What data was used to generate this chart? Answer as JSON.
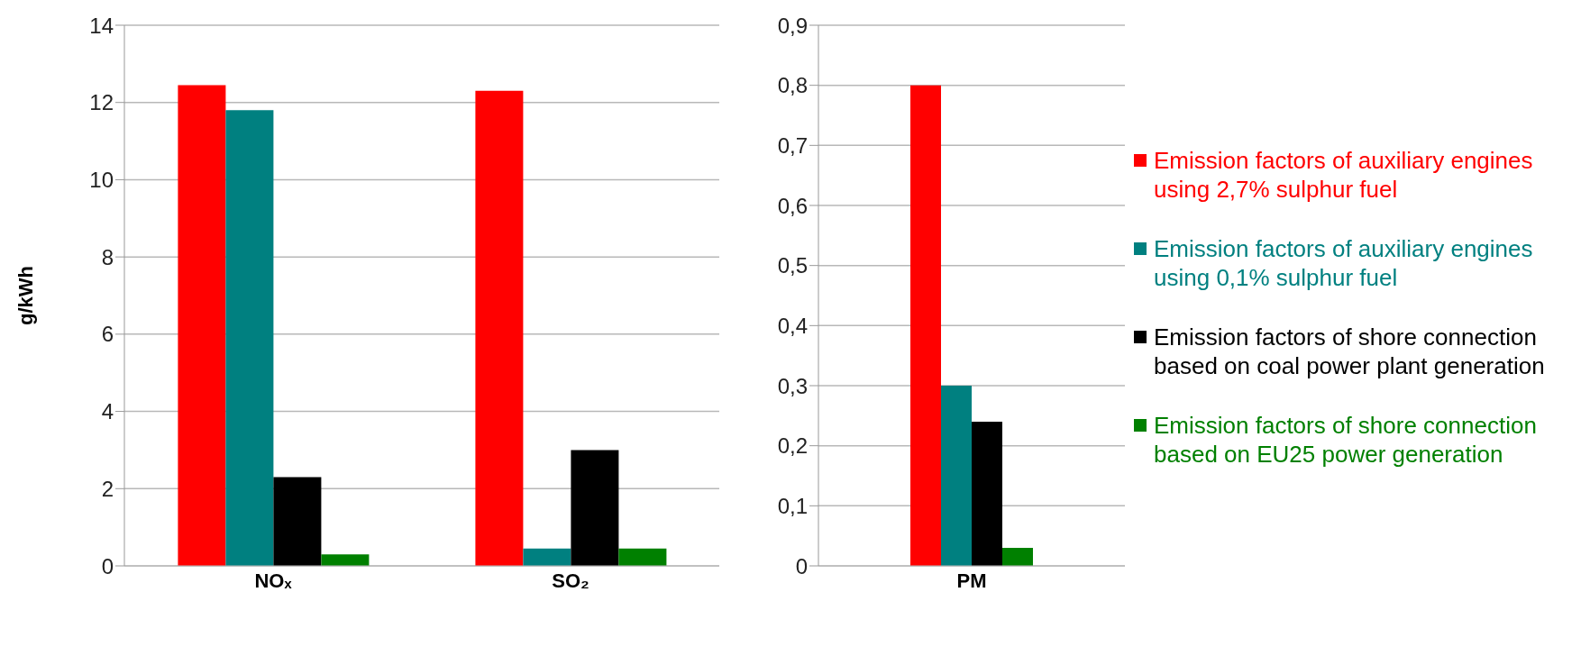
{
  "chart_data": [
    {
      "type": "bar",
      "ylabel": "g/kWh",
      "categories": [
        "NOₓ",
        "SO₂"
      ],
      "ylim": [
        0,
        14
      ],
      "yticks": [
        0,
        2,
        4,
        6,
        8,
        10,
        12,
        14
      ],
      "grid": "y",
      "legend": false,
      "series": [
        {
          "color": "#ff0000",
          "values": [
            12.45,
            12.3
          ]
        },
        {
          "color": "#008080",
          "values": [
            11.8,
            0.45
          ]
        },
        {
          "color": "#000000",
          "values": [
            2.3,
            3.0
          ]
        },
        {
          "color": "#008000",
          "values": [
            0.3,
            0.45
          ]
        }
      ]
    },
    {
      "type": "bar",
      "categories": [
        "PM"
      ],
      "ylim": [
        0,
        0.9
      ],
      "yticks": [
        0,
        {
          "value": 0.1,
          "label": "0,1"
        },
        {
          "value": 0.2,
          "label": "0,2"
        },
        {
          "value": 0.3,
          "label": "0,3"
        },
        {
          "value": 0.4,
          "label": "0,4"
        },
        {
          "value": 0.5,
          "label": "0,5"
        },
        {
          "value": 0.6,
          "label": "0,6"
        },
        {
          "value": 0.7,
          "label": "0,7"
        },
        {
          "value": 0.8,
          "label": "0,8"
        },
        {
          "value": 0.9,
          "label": "0,9"
        }
      ],
      "grid": "y",
      "legend": "right",
      "series": [
        {
          "name": "Emission factors of auxiliary engines using 2,7% sulphur fuel",
          "color": "#ff0000",
          "values": [
            0.8
          ]
        },
        {
          "name": "Emission factors of auxiliary engines using 0,1% sulphur fuel",
          "color": "#008080",
          "values": [
            0.3
          ]
        },
        {
          "name": "Emission factors of shore connection based on coal power plant generation",
          "color": "#000000",
          "values": [
            0.24
          ]
        },
        {
          "name": "Emission factors of shore connection based on EU25 power generation",
          "color": "#008000",
          "values": [
            0.03
          ]
        }
      ]
    }
  ]
}
